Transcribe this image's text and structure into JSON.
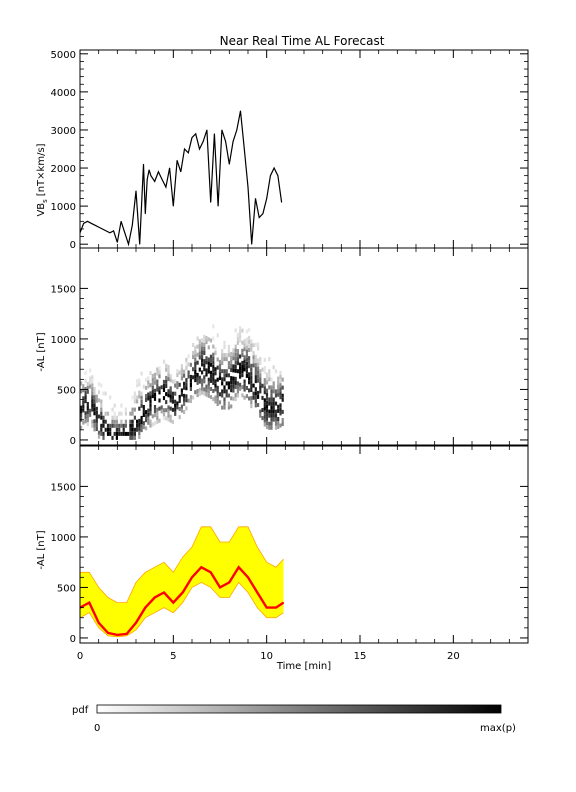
{
  "title": "Near Real Time AL Forecast",
  "chart_data": [
    {
      "type": "line",
      "panel": "top",
      "ylabel": "VB_s [nT×km/s]",
      "ylabel_main": "VB",
      "ylabel_sub": "s",
      "ylabel_rest": "[nT×km/s]",
      "ylim": [
        -100,
        5100
      ],
      "xlim": [
        0,
        24
      ],
      "yticks": [
        0,
        1000,
        2000,
        3000,
        4000,
        5000
      ],
      "x": [
        0.0,
        0.2,
        0.4,
        0.6,
        0.8,
        1.0,
        1.2,
        1.4,
        1.6,
        1.8,
        2.0,
        2.2,
        2.4,
        2.6,
        2.8,
        3.0,
        3.2,
        3.4,
        3.5,
        3.6,
        3.7,
        3.8,
        4.0,
        4.2,
        4.4,
        4.6,
        4.8,
        5.0,
        5.2,
        5.4,
        5.6,
        5.8,
        6.0,
        6.2,
        6.4,
        6.6,
        6.8,
        7.0,
        7.2,
        7.4,
        7.6,
        7.8,
        8.0,
        8.2,
        8.4,
        8.6,
        8.8,
        9.0,
        9.2,
        9.4,
        9.6,
        9.8,
        10.0,
        10.2,
        10.4,
        10.6,
        10.8
      ],
      "y": [
        300,
        550,
        600,
        550,
        500,
        450,
        400,
        350,
        300,
        350,
        50,
        600,
        300,
        0,
        500,
        1400,
        0,
        2100,
        800,
        1700,
        1950,
        1800,
        1650,
        1900,
        1700,
        1500,
        2000,
        1000,
        2200,
        1900,
        2500,
        2400,
        2800,
        2900,
        2500,
        2700,
        3000,
        1100,
        2900,
        1000,
        3000,
        2700,
        2100,
        2700,
        3000,
        3500,
        2500,
        1500,
        0,
        1200,
        700,
        800,
        1200,
        1800,
        2000,
        1800,
        1100
      ]
    },
    {
      "type": "heatmap",
      "panel": "middle",
      "ylabel": "-AL [nT]",
      "ylim": [
        -50,
        1900
      ],
      "xlim": [
        0,
        24
      ],
      "yticks": [
        0,
        500,
        1000,
        1500
      ]
    },
    {
      "type": "area",
      "panel": "bottom",
      "ylabel": "-AL [nT]",
      "xlabel": "Time [min]",
      "ylim": [
        -50,
        1900
      ],
      "xlim": [
        0,
        24
      ],
      "yticks": [
        0,
        500,
        1000,
        1500
      ],
      "xticks": [
        0,
        5,
        10,
        15,
        20
      ],
      "x": [
        0.0,
        0.5,
        1.0,
        1.5,
        2.0,
        2.5,
        3.0,
        3.5,
        4.0,
        4.5,
        5.0,
        5.5,
        6.0,
        6.5,
        7.0,
        7.5,
        8.0,
        8.5,
        9.0,
        9.5,
        10.0,
        10.5,
        10.9
      ],
      "series": [
        {
          "values": [
            300,
            350,
            150,
            50,
            30,
            40,
            150,
            300,
            400,
            450,
            350,
            450,
            600,
            700,
            650,
            500,
            550,
            700,
            600,
            450,
            300,
            300,
            350
          ],
          "color": "#ff0000"
        },
        {
          "values": [
            650,
            650,
            500,
            400,
            350,
            350,
            550,
            650,
            700,
            750,
            650,
            800,
            900,
            1100,
            1100,
            950,
            950,
            1100,
            1100,
            900,
            750,
            700,
            780
          ],
          "color": "#ffff00"
        },
        {
          "values": [
            200,
            250,
            100,
            20,
            10,
            20,
            80,
            200,
            250,
            300,
            250,
            350,
            500,
            550,
            500,
            400,
            400,
            550,
            450,
            300,
            200,
            200,
            250
          ],
          "color": "#ffff00"
        }
      ]
    }
  ],
  "colorbar": {
    "label": "pdf",
    "min_label": "0",
    "max_label": "max(p)",
    "start_color": "#ffffff",
    "end_color": "#000000"
  }
}
